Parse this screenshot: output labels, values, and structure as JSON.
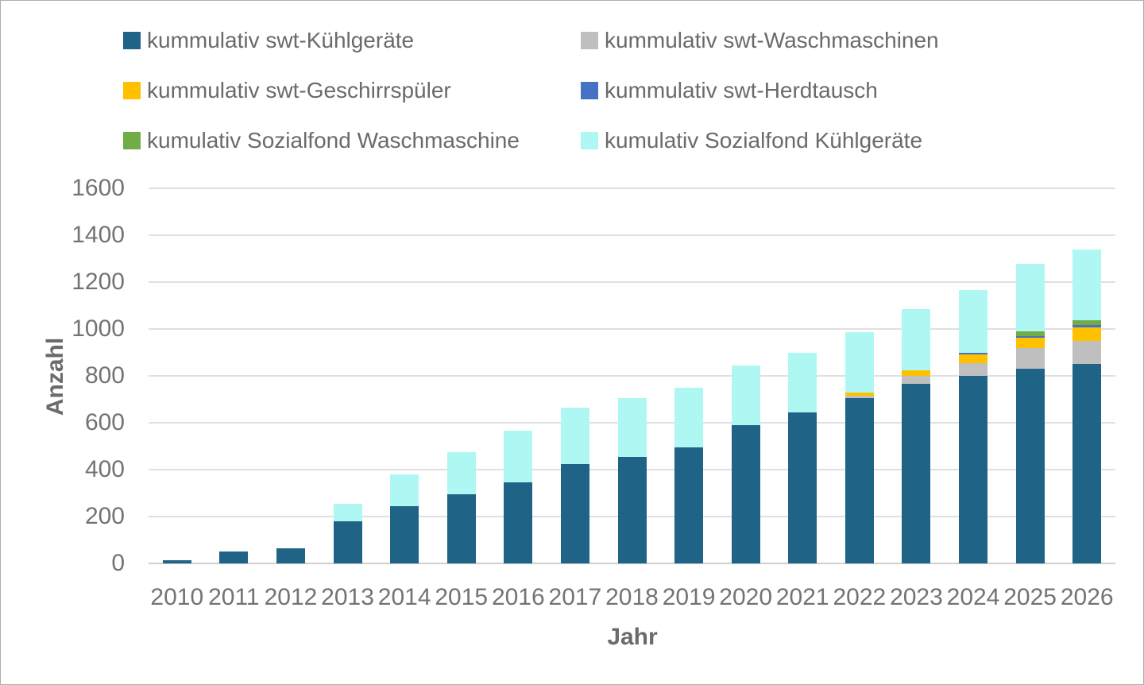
{
  "chart": {
    "ylabel": "Anzahl",
    "xlabel": "Jahr"
  },
  "colors": {
    "gridline": "#e0e0e0",
    "baseline": "#cfcfcf",
    "tick_text": "#737373",
    "axis_title_text": "#6b6b6b",
    "legend_text": "#6a6a6a",
    "border": "#acacac"
  },
  "chart_data": {
    "type": "bar",
    "stacked": true,
    "title": "",
    "xlabel": "Jahr",
    "ylabel": "Anzahl",
    "ylim": [
      0,
      1600
    ],
    "ytick_step": 200,
    "grid": true,
    "legend_position": "top",
    "categories": [
      "2010",
      "2011",
      "2012",
      "2013",
      "2014",
      "2015",
      "2016",
      "2017",
      "2018",
      "2019",
      "2020",
      "2021",
      "2022",
      "2023",
      "2024",
      "2025",
      "2026"
    ],
    "series": [
      {
        "name": "kummulativ swt-Kühlgeräte",
        "color": "#1f6387",
        "values": [
          15,
          50,
          65,
          180,
          245,
          295,
          345,
          425,
          455,
          495,
          590,
          645,
          705,
          765,
          800,
          830,
          850
        ]
      },
      {
        "name": "kummulativ swt-Waschmaschinen",
        "color": "#bfbfbf",
        "values": [
          0,
          0,
          0,
          0,
          0,
          0,
          0,
          0,
          0,
          0,
          0,
          0,
          10,
          35,
          55,
          90,
          100
        ]
      },
      {
        "name": "kummulativ swt-Geschirrspüler",
        "color": "#ffc000",
        "values": [
          0,
          0,
          0,
          0,
          0,
          0,
          0,
          0,
          0,
          0,
          0,
          0,
          15,
          25,
          35,
          43,
          58
        ]
      },
      {
        "name": "kummulativ swt-Herdtausch",
        "color": "#4472c4",
        "values": [
          0,
          0,
          0,
          0,
          0,
          0,
          0,
          0,
          0,
          0,
          0,
          0,
          0,
          0,
          8,
          8,
          8
        ]
      },
      {
        "name": "kumulativ Sozialfond Waschmaschine",
        "color": "#70ad47",
        "values": [
          0,
          0,
          0,
          0,
          0,
          0,
          0,
          0,
          0,
          0,
          0,
          0,
          0,
          0,
          0,
          20,
          22
        ]
      },
      {
        "name": "kumulativ Sozialfond Kühlgeräte",
        "color": "#aef7f3",
        "values": [
          0,
          0,
          0,
          75,
          135,
          180,
          220,
          240,
          250,
          255,
          255,
          255,
          255,
          260,
          267,
          287,
          300
        ]
      }
    ]
  }
}
